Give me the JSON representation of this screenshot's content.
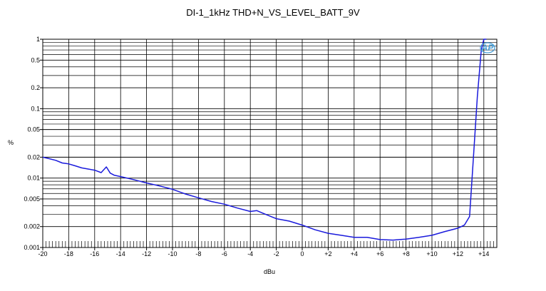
{
  "chart_data": {
    "type": "line",
    "title": "DI-1_1kHz THD+N_VS_LEVEL_BATT_9V",
    "xlabel": "dBu",
    "ylabel": "%",
    "xlim": [
      -20,
      15
    ],
    "ylim": [
      0.001,
      1
    ],
    "y_scale": "log",
    "grid": true,
    "x_tick_labels": [
      "-20",
      "-18",
      "-16",
      "-14",
      "-12",
      "-10",
      "-8",
      "-6",
      "-4",
      "-2",
      "0",
      "+2",
      "+4",
      "+6",
      "+8",
      "+10",
      "+12",
      "+14"
    ],
    "y_tick_labels": [
      "1",
      "0.5",
      "0.2",
      "0.1",
      "0.05",
      "0.02",
      "0.01",
      "0.005",
      "0.002",
      "0.001"
    ],
    "logo_text": "AP",
    "colors": {
      "series": "#1a1adc",
      "grid": "#000000",
      "logo": "#4aa0d8"
    },
    "series": [
      {
        "x": [
          -20,
          -19.5,
          -19,
          -18.5,
          -18,
          -17.5,
          -17,
          -16.5,
          -16,
          -15.5,
          -15.1,
          -14.8,
          -14.5,
          -14,
          -13,
          -12,
          -11,
          -10,
          -9,
          -8,
          -7,
          -6,
          -5,
          -4,
          -3.5,
          -3,
          -2,
          -1,
          0,
          1,
          2,
          3,
          4,
          5,
          6,
          7,
          7.5,
          8,
          9,
          10,
          11,
          12,
          12.5,
          12.9,
          13.2,
          13.5,
          13.8,
          14,
          14.2
        ],
        "y": [
          0.02,
          0.019,
          0.018,
          0.0165,
          0.016,
          0.015,
          0.014,
          0.0135,
          0.013,
          0.012,
          0.0145,
          0.0118,
          0.011,
          0.0105,
          0.0095,
          0.0085,
          0.0077,
          0.0069,
          0.0059,
          0.0052,
          0.0046,
          0.0042,
          0.0037,
          0.0033,
          0.0034,
          0.0031,
          0.0026,
          0.0024,
          0.0021,
          0.0018,
          0.0016,
          0.0015,
          0.0014,
          0.0014,
          0.0013,
          0.00128,
          0.0013,
          0.00132,
          0.0014,
          0.0015,
          0.0017,
          0.0019,
          0.0021,
          0.0028,
          0.02,
          0.15,
          0.7,
          1.0,
          1.0
        ]
      }
    ]
  }
}
